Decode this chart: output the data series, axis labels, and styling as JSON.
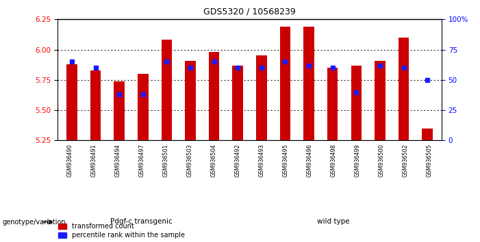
{
  "title": "GDS5320 / 10568239",
  "samples": [
    "GSM936490",
    "GSM936491",
    "GSM936494",
    "GSM936497",
    "GSM936501",
    "GSM936503",
    "GSM936504",
    "GSM936492",
    "GSM936493",
    "GSM936495",
    "GSM936496",
    "GSM936498",
    "GSM936499",
    "GSM936500",
    "GSM936502",
    "GSM936505"
  ],
  "red_values": [
    5.88,
    5.83,
    5.74,
    5.8,
    6.08,
    5.91,
    5.98,
    5.87,
    5.95,
    6.19,
    6.19,
    5.85,
    5.87,
    5.91,
    6.1,
    5.35
  ],
  "blue_percentile": [
    65,
    60,
    38,
    38,
    65,
    60,
    65,
    60,
    60,
    65,
    62,
    60,
    40,
    62,
    60,
    50
  ],
  "group1_label": "Pdgf-c transgenic",
  "group2_label": "wild type",
  "group1_count": 7,
  "group2_count": 9,
  "ylim_left": [
    5.25,
    6.25
  ],
  "ylim_right": [
    0,
    100
  ],
  "yticks_left": [
    5.25,
    5.5,
    5.75,
    6.0,
    6.25
  ],
  "yticks_right": [
    0,
    25,
    50,
    75,
    100
  ],
  "bar_color": "#cc0000",
  "blue_color": "#1a1aff",
  "xtick_bg": "#d0d0d0",
  "group1_bg": "#90ee90",
  "group2_bg": "#3cb043",
  "legend_red": "transformed count",
  "legend_blue": "percentile rank within the sample",
  "arrow_label": "genotype/variation",
  "bar_width": 0.45
}
